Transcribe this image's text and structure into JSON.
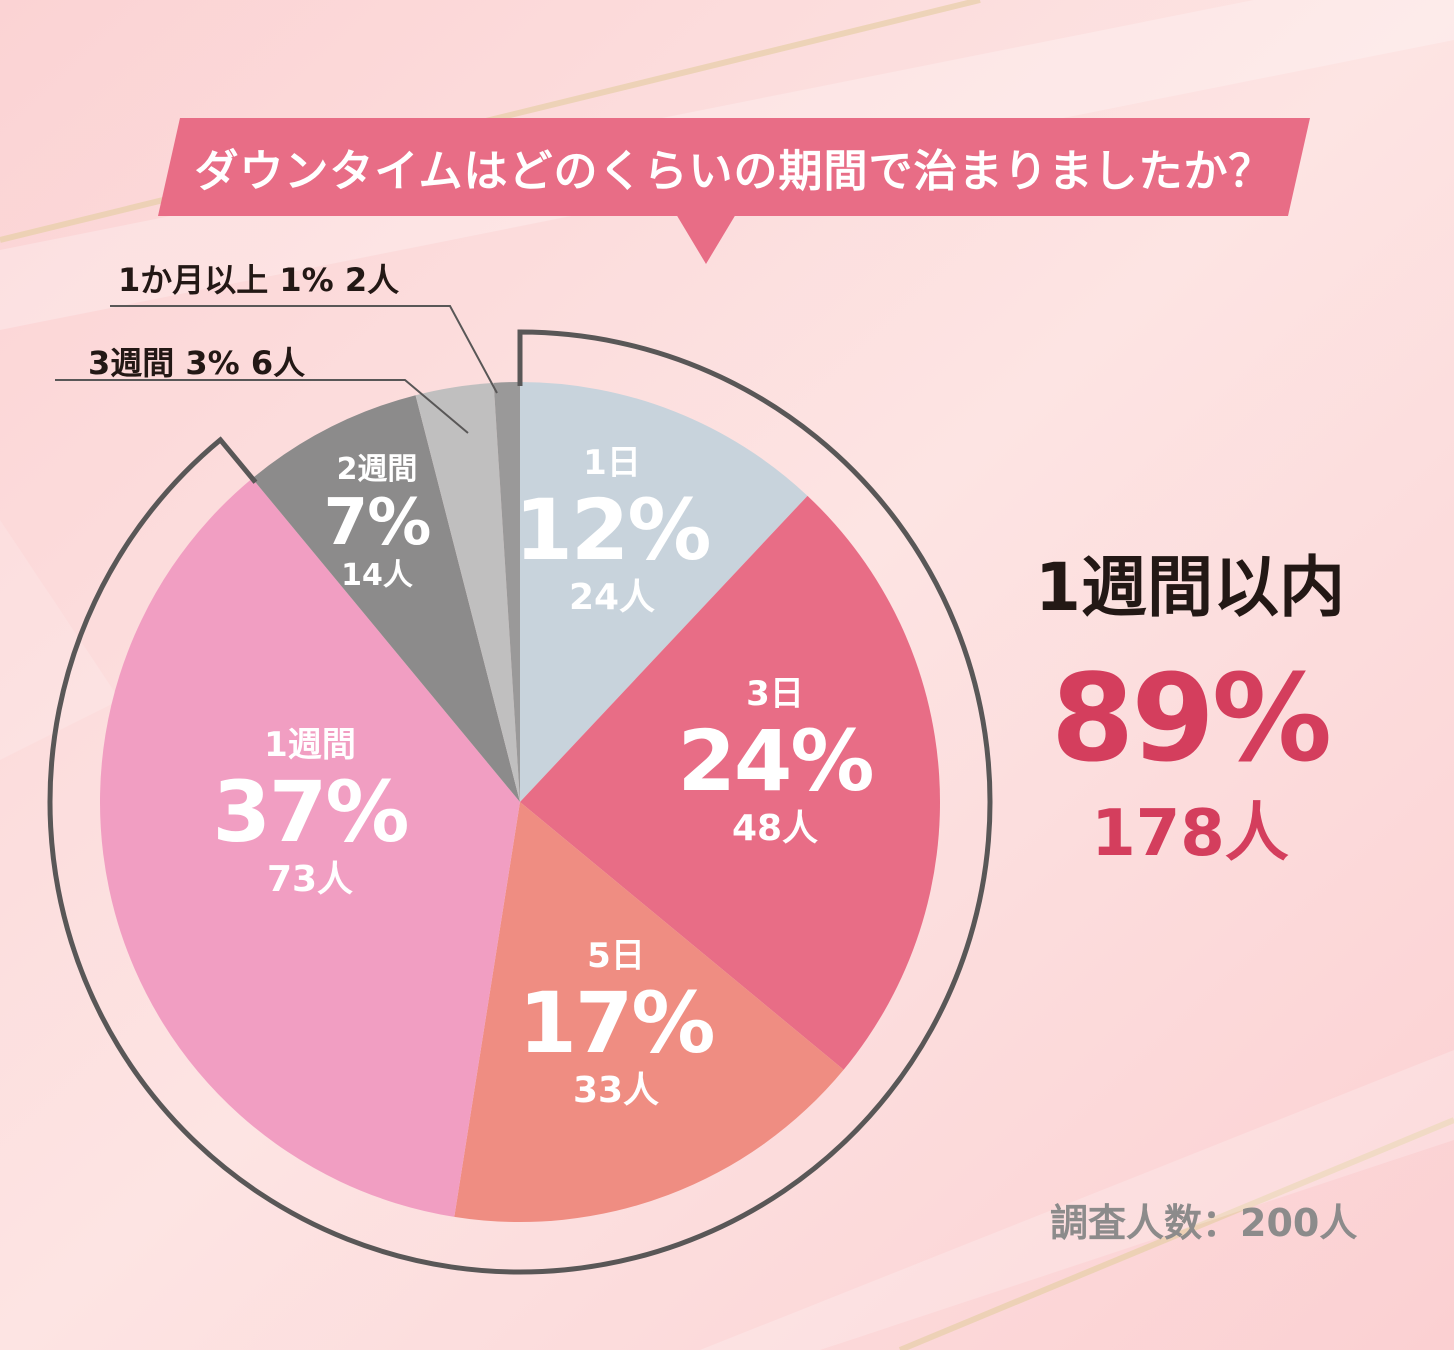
{
  "colors": {
    "background": "#fcd9da",
    "banner": "#e86d86",
    "accent": "#d43e5d",
    "ring": "#595757"
  },
  "chart_data": {
    "type": "pie",
    "title": "ダウンタイムはどのくらいの期間で治まりましたか？",
    "slices": [
      {
        "name": "1日",
        "percent_label": "12%",
        "count_label": "24人",
        "count": 24,
        "color": "#c8d3dc"
      },
      {
        "name": "3日",
        "percent_label": "24%",
        "count_label": "48人",
        "count": 48,
        "color": "#e86d86"
      },
      {
        "name": "5日",
        "percent_label": "17%",
        "count_label": "33人",
        "count": 33,
        "color": "#ef8d82"
      },
      {
        "name": "1週間",
        "percent_label": "37%",
        "count_label": "73人",
        "count": 73,
        "color": "#f19ec2"
      },
      {
        "name": "2週間",
        "percent_label": "7%",
        "count_label": "14人",
        "count": 14,
        "color": "#8c8b8b"
      },
      {
        "name": "3週間",
        "percent_label": "3%",
        "count_label": "6人",
        "count": 6,
        "color": "#c0bfbf"
      },
      {
        "name": "1か月以上",
        "percent_label": "1%",
        "count_label": "2人",
        "count": 2,
        "color": "#9a9999"
      }
    ],
    "callouts": [
      {
        "text": "1か月以上  1%  2人"
      },
      {
        "text": "3週間  3%  6人"
      }
    ],
    "summary": {
      "title": "1週間以内",
      "percent": "89%",
      "count": "178人"
    },
    "note": "調査人数：200人"
  }
}
